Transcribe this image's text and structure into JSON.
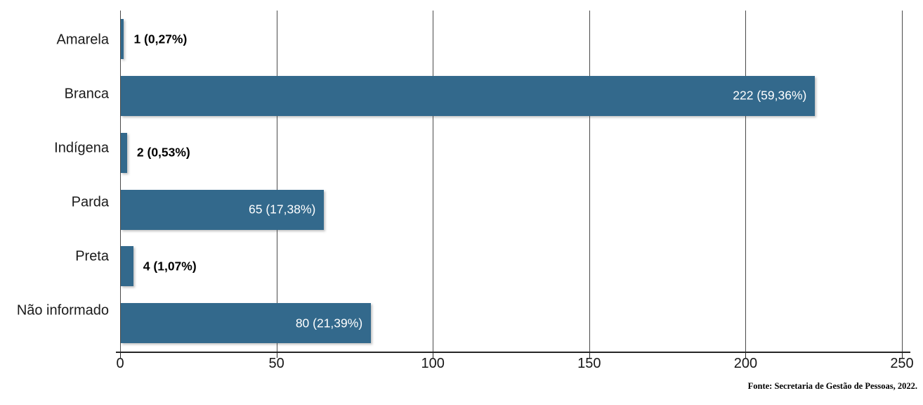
{
  "chart_data": {
    "type": "bar",
    "orientation": "horizontal",
    "title": "",
    "xlabel": "",
    "ylabel": "",
    "categories": [
      "Amarela",
      "Branca",
      "Indígena",
      "Parda",
      "Preta",
      "Não informado"
    ],
    "values": [
      1,
      222,
      2,
      65,
      4,
      80
    ],
    "value_labels": [
      "1 (0,27%)",
      "222 (59,36%)",
      "2 (0,53%)",
      "65 (17,38%)",
      "4 (1,07%)",
      "80 (21,39%)"
    ],
    "label_position": [
      "outside",
      "inside",
      "outside",
      "inside",
      "outside",
      "inside"
    ],
    "xlim": [
      0,
      250
    ],
    "xticks": [
      0,
      50,
      100,
      150,
      200,
      250
    ],
    "grid": "vertical-only",
    "legend": "none",
    "bar_color": "#33698C",
    "gridline_color": "#4a4a4a",
    "axis_color": "#262626",
    "label_color_inside": "#ffffff",
    "label_color_outside": "#000000"
  },
  "source_note": "Fonte: Secretaria de Gestão de Pessoas, 2022."
}
